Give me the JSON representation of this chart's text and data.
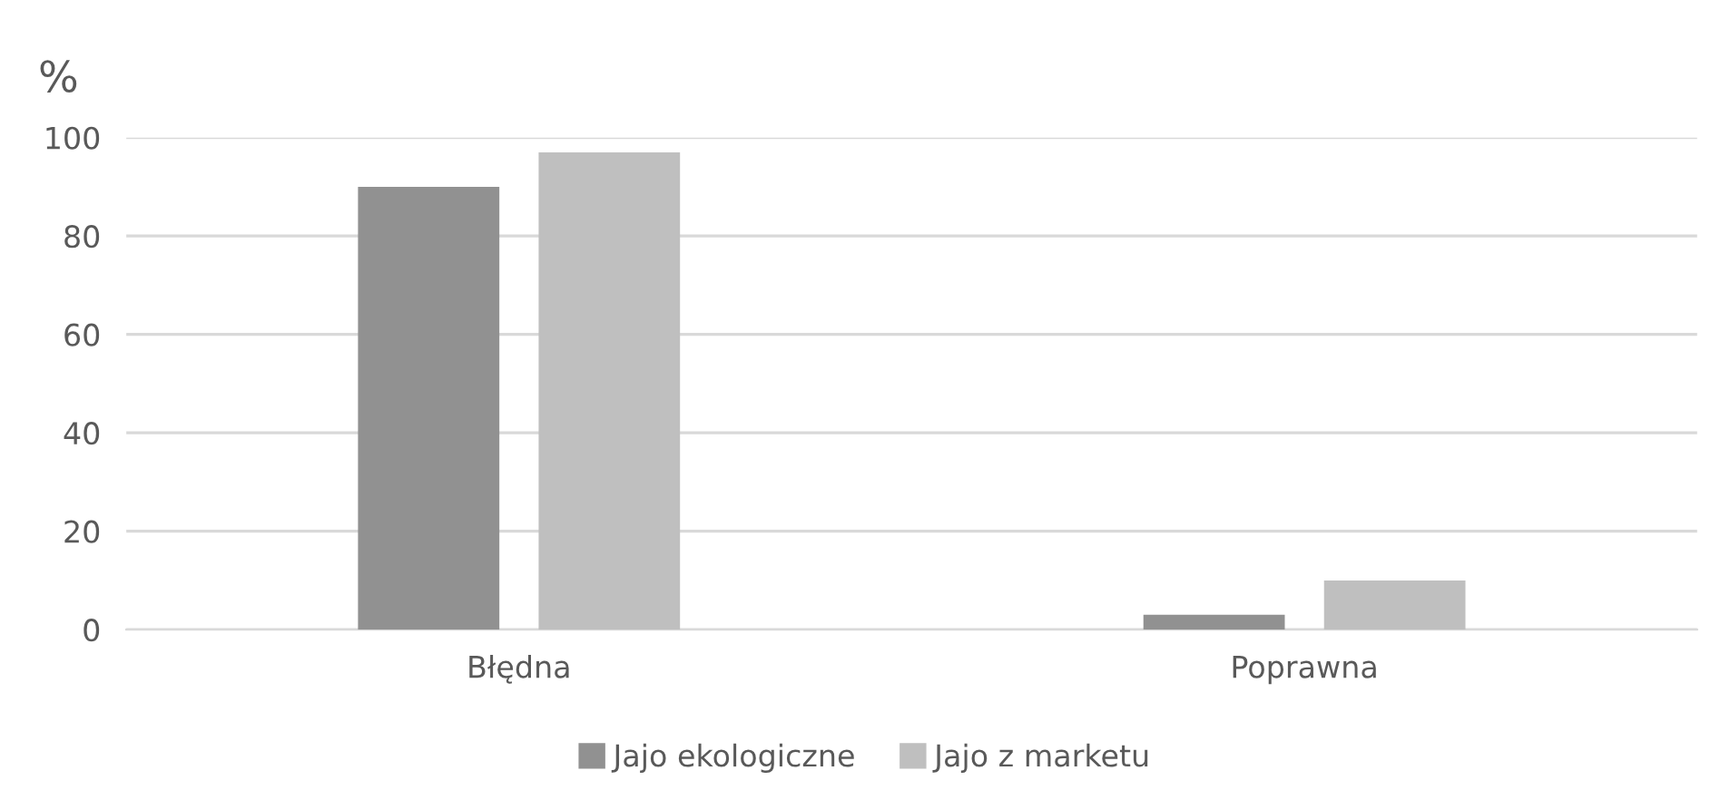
{
  "chart_data": {
    "type": "bar",
    "ylabel": "%",
    "categories": [
      "Błędna",
      "Poprawna"
    ],
    "series": [
      {
        "name": "Jajo ekologiczne",
        "color": "#919191",
        "values": [
          90,
          3
        ]
      },
      {
        "name": "Jajo z marketu",
        "color": "#bfbfbf",
        "values": [
          97,
          10
        ]
      }
    ],
    "ylim": [
      0,
      100
    ],
    "yticks": [
      0,
      20,
      40,
      60,
      80,
      100
    ],
    "grid": "y",
    "legend": "bottom"
  }
}
